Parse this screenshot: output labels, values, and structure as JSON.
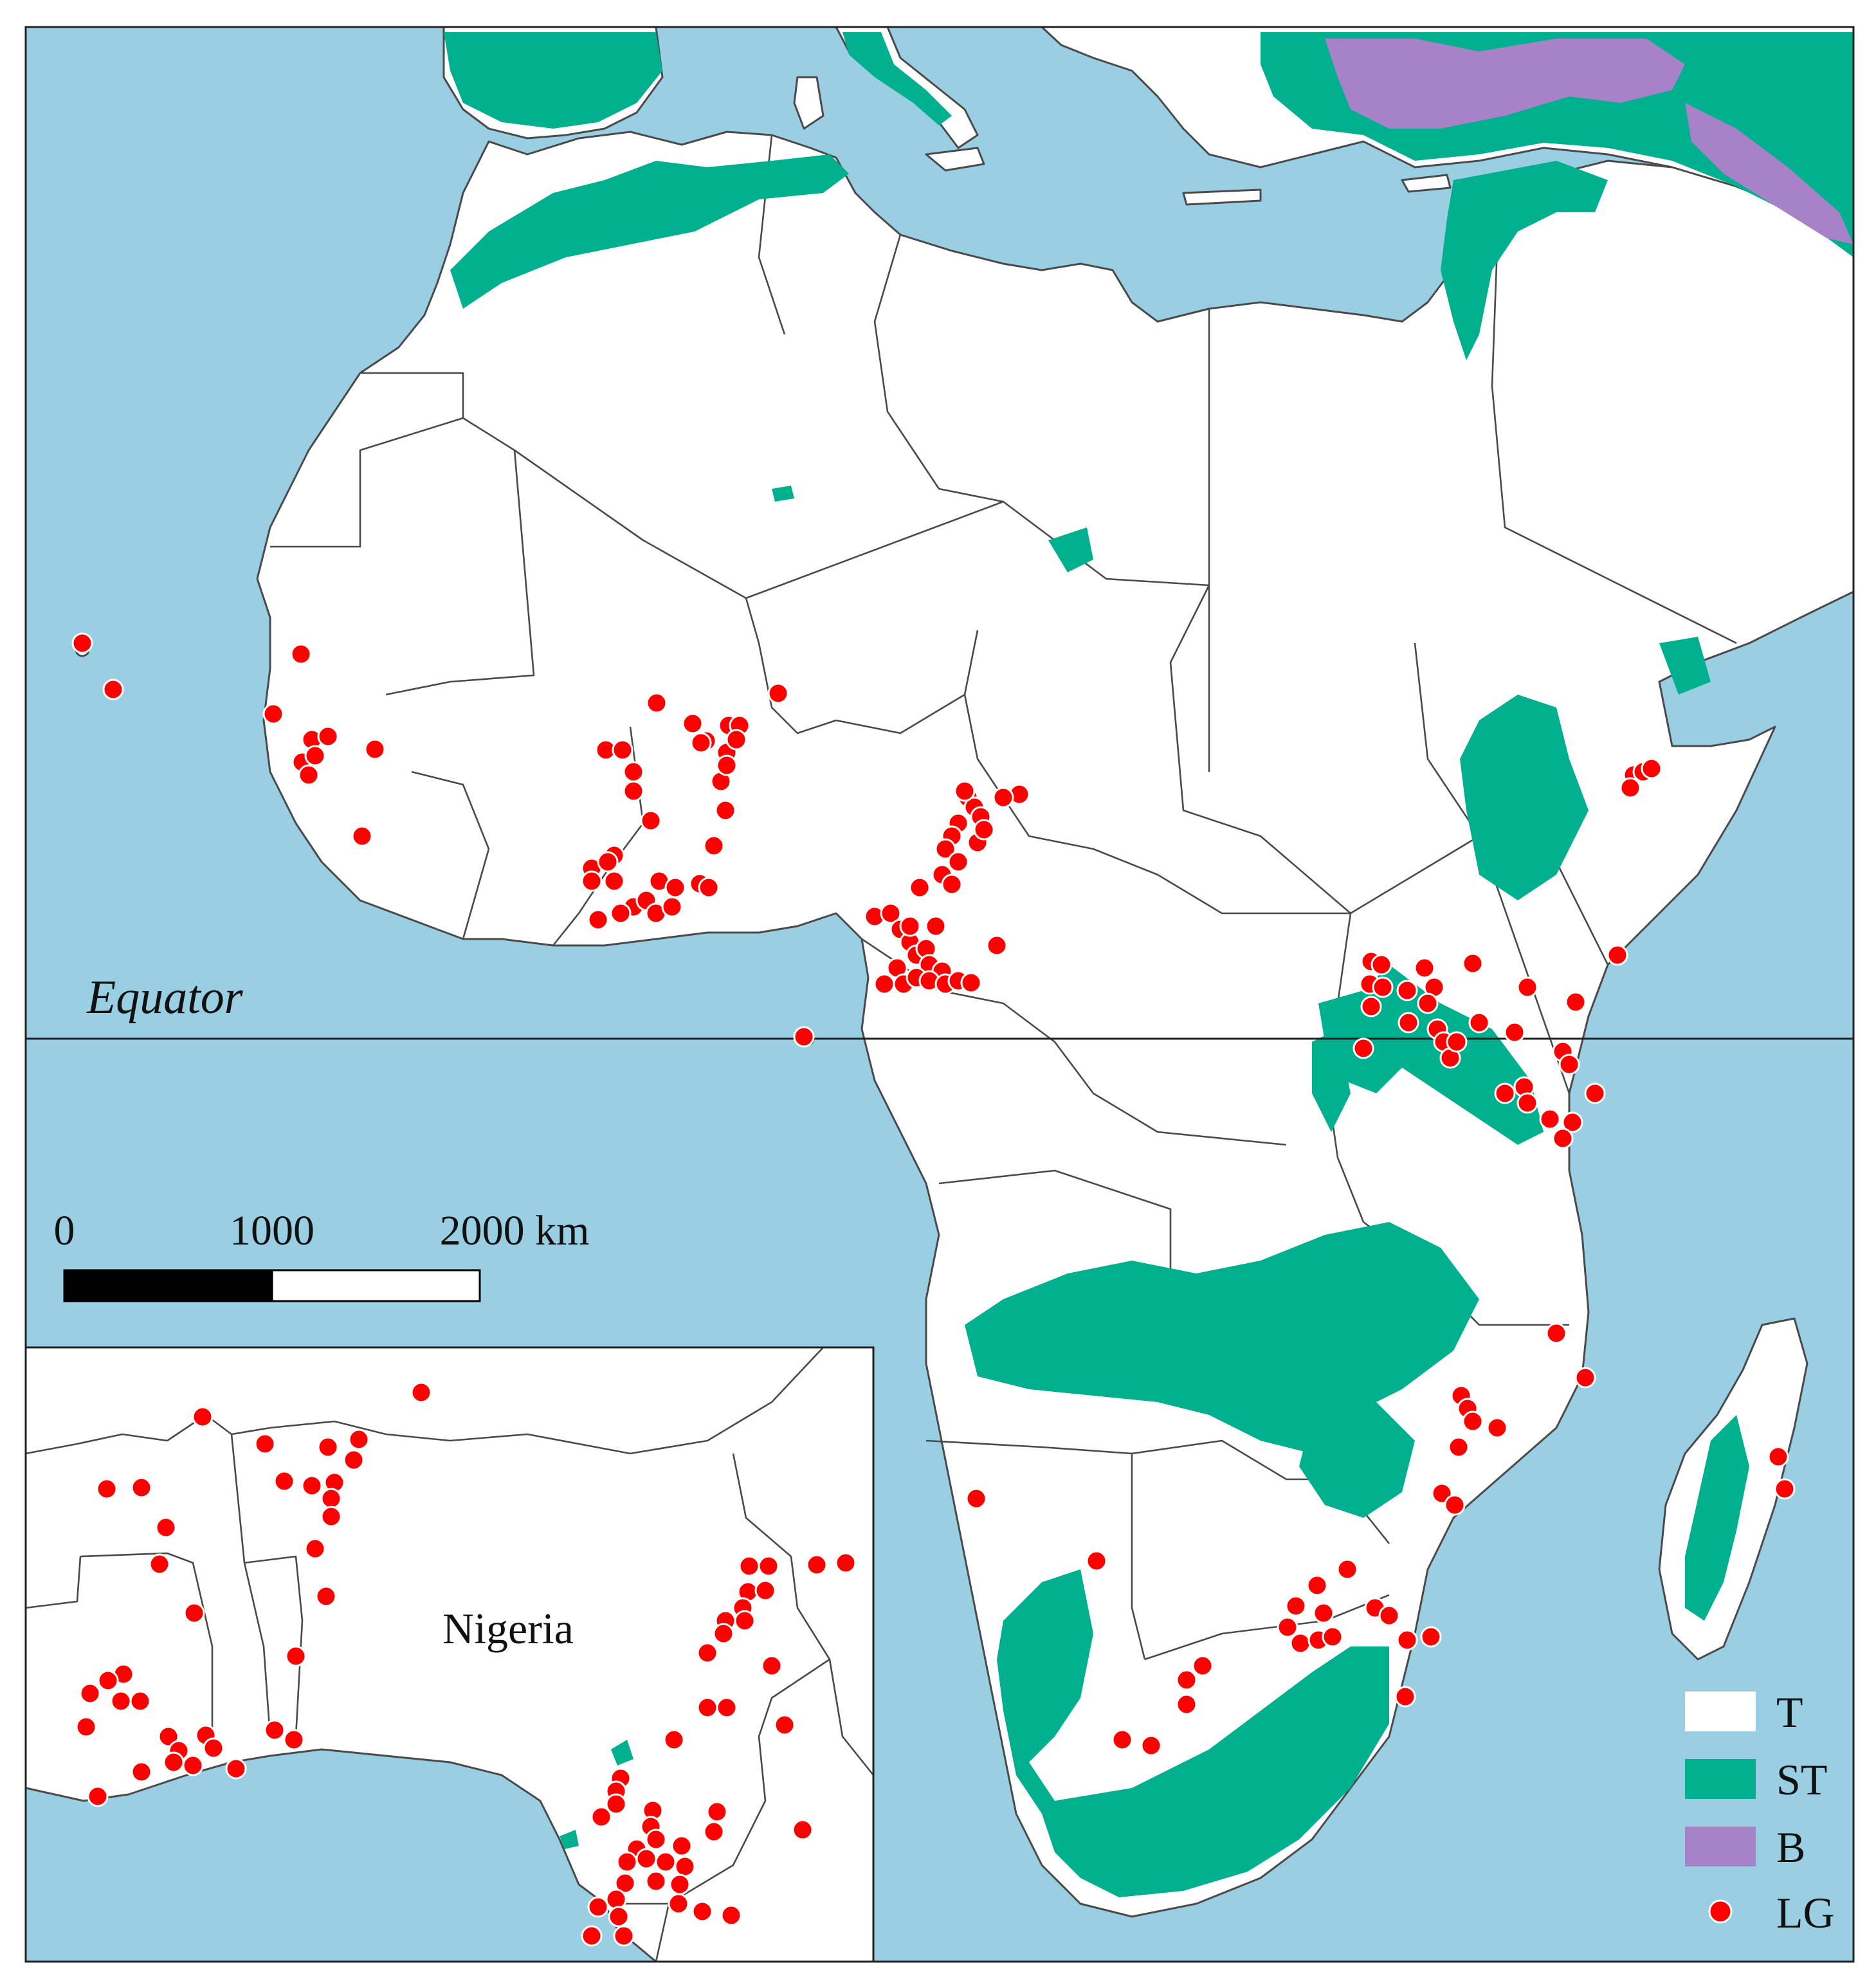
{
  "colors": {
    "ocean": "#9ACFE3",
    "tropical": "#FFFFFF",
    "subtropical": "#00B08E",
    "boreal": "#A782C8",
    "lg_sites": "#FF0000"
  },
  "equator_label": "Equator",
  "scale_bar": {
    "ticks": [
      "0",
      "1000",
      "2000 km"
    ]
  },
  "inset": {
    "label": "Nigeria"
  },
  "legend": [
    {
      "key": "T",
      "kind": "tropical"
    },
    {
      "key": "ST",
      "kind": "subtropical"
    },
    {
      "key": "B",
      "kind": "boreal"
    },
    {
      "key": "LG",
      "kind": "site"
    }
  ]
}
